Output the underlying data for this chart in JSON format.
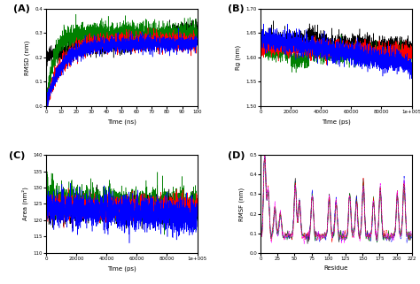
{
  "panel_A": {
    "label": "(A)",
    "xlabel": "Time (ns)",
    "ylabel": "RMSD (nm)",
    "xlim": [
      0,
      100
    ],
    "ylim": [
      0,
      0.4
    ],
    "yticks": [
      0,
      0.1,
      0.2,
      0.3,
      0.4
    ],
    "xticks": [
      0,
      10,
      20,
      30,
      40,
      50,
      60,
      70,
      80,
      90,
      100
    ],
    "colors": [
      "black",
      "green",
      "red",
      "blue"
    ],
    "n_points": 2000
  },
  "panel_B": {
    "label": "(B)",
    "xlabel": "Time (ps)",
    "ylabel": "Rg (nm)",
    "xlim": [
      0,
      100000
    ],
    "ylim": [
      1.5,
      1.7
    ],
    "yticks": [
      1.5,
      1.55,
      1.6,
      1.65,
      1.7
    ],
    "xticks": [
      0,
      20000,
      40000,
      60000,
      80000,
      100000
    ],
    "xticklabels": [
      "0",
      "20000",
      "40000",
      "60000",
      "80000",
      "1e+005"
    ],
    "colors": [
      "black",
      "green",
      "red",
      "blue"
    ],
    "n_points": 2000
  },
  "panel_C": {
    "label": "(C)",
    "xlabel": "Time (ps)",
    "ylabel": "Area (nm²)",
    "xlim": [
      0,
      100000
    ],
    "ylim": [
      110,
      140
    ],
    "yticks": [
      110,
      115,
      120,
      125,
      130,
      135,
      140
    ],
    "xticks": [
      0,
      20000,
      40000,
      60000,
      80000,
      100000
    ],
    "xticklabels": [
      "0",
      "20000",
      "40000",
      "60000",
      "80000",
      "1e+005"
    ],
    "colors": [
      "black",
      "green",
      "red",
      "blue"
    ],
    "n_points": 2000
  },
  "panel_D": {
    "label": "(D)",
    "xlabel": "Residue",
    "ylabel": "RMSF (nm)",
    "xlim": [
      0,
      222
    ],
    "ylim": [
      0,
      0.5
    ],
    "yticks": [
      0,
      0.1,
      0.2,
      0.3,
      0.4,
      0.5
    ],
    "xticks": [
      0,
      25,
      50,
      75,
      100,
      125,
      150,
      175,
      200,
      222
    ],
    "colors": [
      "black",
      "blue",
      "green",
      "red",
      "magenta"
    ],
    "linestyles": [
      "-",
      "-.",
      "-",
      "-.",
      "--"
    ],
    "n_residues": 222
  },
  "figure_bg": "white"
}
